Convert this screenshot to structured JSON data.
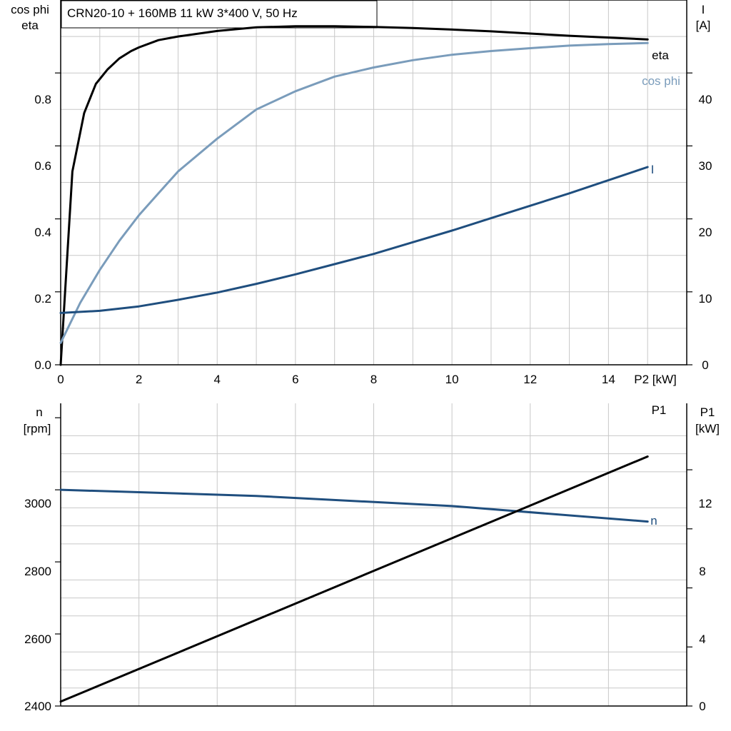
{
  "title": "CRN20-10 + 160MB   11 kW   3*400 V, 50 Hz",
  "colors": {
    "eta": "#000000",
    "cos_phi": "#7a9cbb",
    "I": "#1f4e7e",
    "n": "#1f4e7e",
    "P1": "#000000"
  },
  "chart_data": [
    {
      "type": "line",
      "xlabel": "P2 [kW]",
      "xlim": [
        0,
        16
      ],
      "xticks": [
        0,
        2,
        4,
        6,
        8,
        10,
        12,
        14
      ],
      "left_axis": {
        "label_line1": "cos phi",
        "label_line2": "eta",
        "ylim": [
          0,
          1.0
        ],
        "ticks": [
          "0.0",
          "0.2",
          "0.4",
          "0.6",
          "0.8"
        ]
      },
      "right_axis": {
        "label_line1": "I",
        "label_line2": "[A]",
        "ylim": [
          0,
          50
        ],
        "ticks": [
          "0",
          "10",
          "20",
          "30",
          "40"
        ]
      },
      "grid": true,
      "series": [
        {
          "name": "eta",
          "axis": "left",
          "x": [
            0,
            0.3,
            0.6,
            0.9,
            1.2,
            1.5,
            1.8,
            2,
            2.5,
            3,
            4,
            5,
            6,
            7,
            8,
            9,
            10,
            11,
            12,
            13,
            14,
            15
          ],
          "values": [
            0,
            0.53,
            0.69,
            0.77,
            0.81,
            0.84,
            0.86,
            0.87,
            0.89,
            0.9,
            0.915,
            0.925,
            0.928,
            0.928,
            0.926,
            0.923,
            0.919,
            0.914,
            0.908,
            0.902,
            0.897,
            0.892
          ]
        },
        {
          "name": "cos phi",
          "axis": "left",
          "x": [
            0,
            0.5,
            1,
            1.5,
            2,
            2.5,
            3,
            4,
            5,
            6,
            7,
            8,
            9,
            10,
            11,
            12,
            13,
            14,
            15
          ],
          "values": [
            0.06,
            0.17,
            0.26,
            0.34,
            0.41,
            0.47,
            0.53,
            0.62,
            0.7,
            0.75,
            0.79,
            0.815,
            0.835,
            0.85,
            0.86,
            0.868,
            0.875,
            0.879,
            0.882
          ]
        },
        {
          "name": "I",
          "axis": "right",
          "x": [
            0,
            1,
            2,
            3,
            4,
            5,
            6,
            7,
            8,
            9,
            10,
            11,
            12,
            13,
            14,
            15
          ],
          "values": [
            7.1,
            7.4,
            8.0,
            8.9,
            9.9,
            11.1,
            12.4,
            13.8,
            15.2,
            16.8,
            18.4,
            20.1,
            21.8,
            23.5,
            25.3,
            27.1
          ]
        }
      ]
    },
    {
      "type": "line",
      "xlim": [
        0,
        16
      ],
      "left_axis": {
        "label_line1": "n",
        "label_line2": "[rpm]",
        "ylim": [
          2400,
          3240
        ],
        "ticks": [
          "2400",
          "2600",
          "2800",
          "3000"
        ]
      },
      "right_axis": {
        "label_line1": "P1",
        "label_line2": "[kW]",
        "ylim": [
          0,
          20.5
        ],
        "ticks": [
          "0",
          "4",
          "8",
          "12"
        ]
      },
      "grid": true,
      "series": [
        {
          "name": "n",
          "axis": "left",
          "x": [
            0,
            5,
            10,
            15
          ],
          "values": [
            3000,
            2983,
            2955,
            2912
          ]
        },
        {
          "name": "P1",
          "axis": "right",
          "x": [
            0,
            15
          ],
          "values": [
            0.3,
            16.9
          ]
        }
      ]
    }
  ]
}
